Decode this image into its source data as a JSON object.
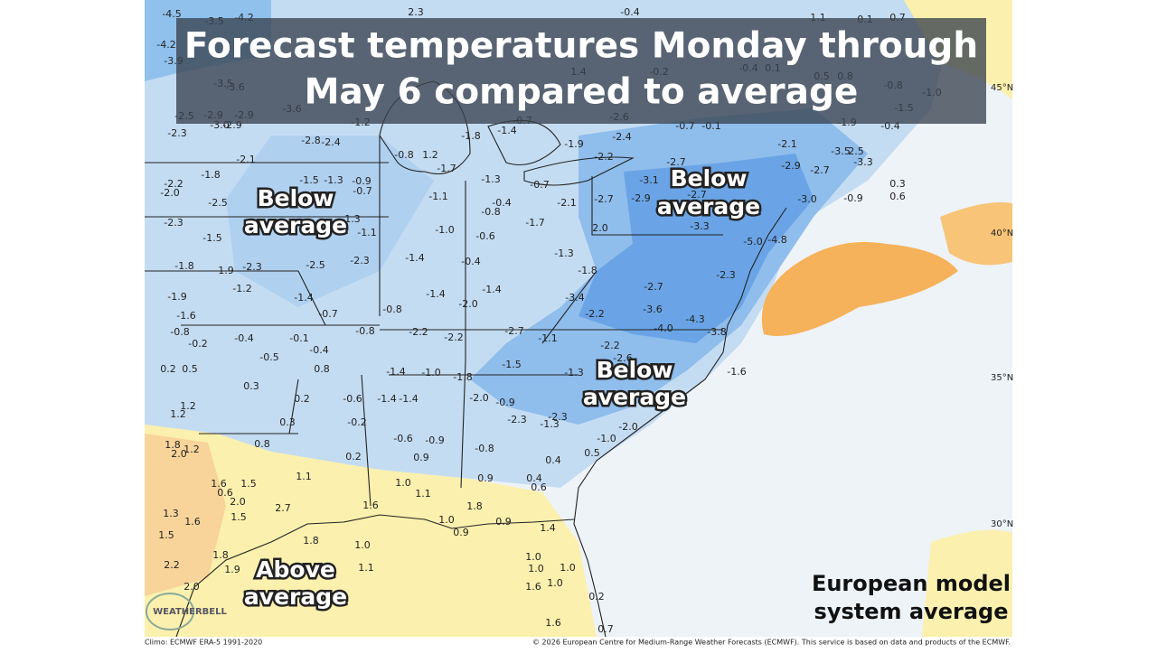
{
  "title_lines": [
    "Forecast temperatures Monday through",
    "May 6 compared to average"
  ],
  "annotations": [
    {
      "lines": [
        "Below",
        "average"
      ]
    },
    {
      "lines": [
        "Below",
        "average"
      ]
    },
    {
      "lines": [
        "Below",
        "average"
      ]
    },
    {
      "lines": [
        "Above",
        "average"
      ]
    }
  ],
  "credit_lines": [
    "European model",
    "system average"
  ],
  "latitude_labels": [
    "45°N",
    "40°N",
    "35°N",
    "30°N"
  ],
  "footer_left": "Climo: ECMWF ERA-5 1991-2020",
  "footer_right": "© 2026 European Centre for Medium-Range Weather Forecasts (ECMWF). This service is based on data and products of the ECMWF.",
  "logo": "WEATHERBELL",
  "anomalies": [
    "-4.5",
    "-3.5",
    "-4.2",
    "2.3",
    "-0.4",
    "1.1",
    "0.1",
    "0.7",
    "-4.2",
    "-3.9",
    "-3.5",
    "-3.6",
    "-3.6",
    "-2.5",
    "-2.9",
    "-2.9",
    "-3.0",
    "-2.9",
    "-2.3",
    "-1.2",
    "-0.7",
    "-2.6",
    "-0.7",
    "-0.1",
    "-1.9",
    "-0.4",
    "1.4",
    "-0.2",
    "-0.4",
    "0.1",
    "0.5",
    "0.8",
    "-0.8",
    "-1.0",
    "-1.5",
    "-2.8",
    "-2.4",
    "-1.8",
    "-1.4",
    "-1.9",
    "-2.4",
    "-2.1",
    "-3.5",
    "2.5",
    "-2.1",
    "-0.8",
    "1.2",
    "-1.7",
    "-2.2",
    "-2.7",
    "-2.9",
    "-2.7",
    "-3.3",
    "-1.8",
    "-2.2",
    "-2.0",
    "-1.5",
    "-1.3",
    "-0.9",
    "-0.7",
    "-1.3",
    "-0.7",
    "-3.1",
    "0.3",
    "-2.5",
    "-1.1",
    "-0.4",
    "-0.8",
    "-2.1",
    "-2.7",
    "-2.9",
    "-2.7",
    "-3.0",
    "-0.9",
    "0.6",
    "-2.3",
    "-1.3",
    "-1.7",
    "2.0",
    "-3.3",
    "-1.5",
    "-1.1",
    "-1.0",
    "-0.6",
    "-5.0",
    "-4.8",
    "-1.8",
    "-1.9",
    "-2.3",
    "-2.5",
    "-2.3",
    "-1.4",
    "-0.4",
    "-1.3",
    "-1.8",
    "-2.3",
    "-1.2",
    "-1.4",
    "-1.4",
    "-1.4",
    "-2.7",
    "-1.9",
    "-2.0",
    "-3.4",
    "-0.8",
    "-0.7",
    "-2.2",
    "-3.6",
    "-1.6",
    "-4.3",
    "-4.0",
    "-0.8",
    "-0.8",
    "-2.2",
    "-2.2",
    "-2.7",
    "-1.1",
    "-3.8",
    "-0.2",
    "-0.4",
    "-0.1",
    "-0.4",
    "-2.2",
    "-2.6",
    "-0.5",
    "0.2",
    "0.5",
    "-1.5",
    "0.8",
    "-1.4",
    "-1.0",
    "-1.8",
    "-1.3",
    "-1.6",
    "0.3",
    "0.2",
    "-0.6",
    "-1.4",
    "-1.4",
    "-2.0",
    "-0.9",
    "1.2",
    "1.2",
    "0.3",
    "-0.2",
    "-2.3",
    "-2.3",
    "-1.3",
    "-2.0",
    "-0.6",
    "-0.9",
    "-1.0",
    "1.8",
    "0.8",
    "-0.8",
    "2.0",
    "1.2",
    "0.2",
    "0.9",
    "0.5",
    "0.4",
    "1.1",
    "0.9",
    "0.4",
    "0.6",
    "1.0",
    "1.6",
    "0.6",
    "1.5",
    "2.0",
    "1.6",
    "1.1",
    "1.8",
    "1.3",
    "1.5",
    "2.7",
    "1.6",
    "1.0",
    "0.9",
    "1.4",
    "1.5",
    "1.8",
    "1.0",
    "0.9",
    "1.8",
    "2.2",
    "1.9",
    "1.1",
    "1.0",
    "1.0",
    "1.0",
    "1.6",
    "1.0",
    "2.0",
    "0.2",
    "1.6",
    "0.7"
  ]
}
